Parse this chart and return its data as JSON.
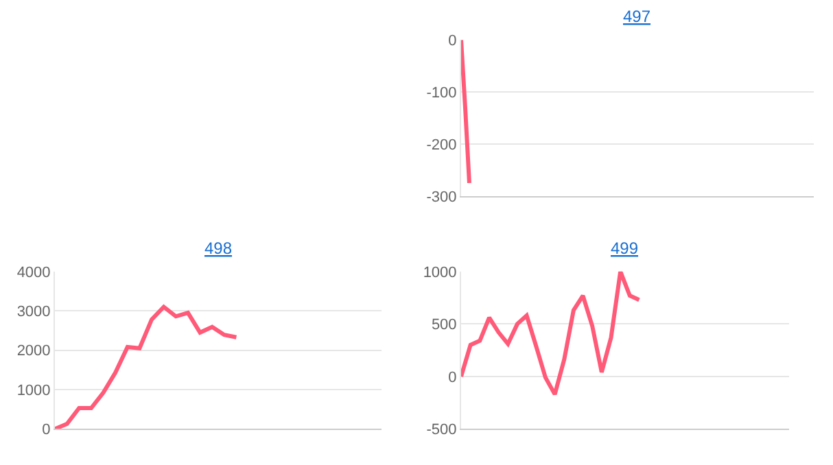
{
  "chart_data": [
    {
      "type": "line",
      "title": "497",
      "categories": [
        null,
        null,
        null,
        null,
        null,
        null,
        null,
        null,
        null,
        null,
        null,
        null,
        null,
        null,
        null,
        null,
        null,
        null,
        null,
        null,
        null,
        null,
        null,
        null,
        null,
        null,
        null,
        null,
        null,
        null,
        null,
        null,
        null,
        null,
        null,
        null,
        null,
        null,
        null,
        null,
        null,
        null,
        null,
        null,
        null,
        null,
        null,
        null,
        null,
        null,
        null,
        null,
        null,
        null,
        null,
        null,
        null,
        null,
        null,
        null,
        null,
        null,
        null,
        null,
        null,
        null,
        null,
        null,
        null,
        null,
        null,
        null,
        null,
        null,
        null,
        null,
        null,
        null,
        null,
        null,
        null,
        null,
        null,
        null,
        null,
        null,
        null
      ],
      "series": [
        {
          "color": "#ff5a78",
          "values": [
            0,
            -130,
            -275,
            null,
            null,
            null,
            null,
            null,
            null,
            null,
            null,
            null,
            null,
            null,
            null,
            null,
            null,
            null,
            null,
            null,
            null,
            null,
            null,
            null,
            null,
            null,
            null,
            null,
            null,
            null,
            null,
            null,
            null,
            null,
            null,
            null,
            null,
            null,
            null,
            null,
            null,
            null,
            null,
            null,
            null,
            null,
            null,
            null,
            null,
            null,
            null,
            null,
            null,
            null,
            null,
            null,
            null,
            null,
            null,
            null,
            null,
            null,
            null,
            null,
            null,
            null,
            null,
            null,
            null,
            null,
            null,
            null,
            null,
            null,
            null,
            null,
            null,
            null,
            null,
            null,
            null,
            null,
            null,
            null,
            null,
            null,
            null
          ]
        }
      ],
      "ylim": [
        -300,
        0
      ],
      "yticks": [
        -300,
        -200,
        -100,
        0
      ],
      "grid": "y",
      "tick_labels": "y",
      "marker": "none"
    },
    {
      "type": "line",
      "title": "498",
      "categories": [
        null,
        null,
        null,
        null,
        null,
        null,
        null,
        null,
        null,
        null,
        null,
        null,
        null,
        null,
        null,
        null,
        null,
        null,
        null,
        null,
        null,
        null,
        null,
        null,
        null,
        null,
        null,
        null
      ],
      "series": [
        {
          "color": "#ff5a78",
          "values": [
            0,
            130,
            530,
            530,
            920,
            1430,
            2080,
            2050,
            2780,
            3100,
            2860,
            2950,
            2450,
            2590,
            2390,
            2330,
            null,
            null,
            null,
            null,
            null,
            null,
            null,
            null,
            null,
            null,
            null,
            null
          ]
        }
      ],
      "ylim": [
        0,
        4000
      ],
      "yticks": [
        0,
        1000,
        2000,
        3000,
        4000
      ],
      "grid": "y",
      "tick_labels": "y",
      "marker": "none"
    },
    {
      "type": "line",
      "title": "499",
      "categories": [
        null,
        null,
        null,
        null,
        null,
        null,
        null,
        null,
        null,
        null,
        null,
        null,
        null,
        null,
        null,
        null,
        null,
        null,
        null,
        null,
        null,
        null,
        null,
        null,
        null,
        null,
        null,
        null,
        null,
        null,
        null,
        null,
        null,
        null,
        null,
        null
      ],
      "series": [
        {
          "color": "#ff5a78",
          "values": [
            0,
            300,
            340,
            560,
            420,
            310,
            500,
            580,
            290,
            -10,
            -170,
            160,
            630,
            770,
            480,
            40,
            370,
            1000,
            770,
            730,
            null,
            null,
            null,
            null,
            null,
            null,
            null,
            null,
            null,
            null,
            null,
            null,
            null,
            null,
            null,
            null
          ]
        }
      ],
      "ylim": [
        -500,
        1000
      ],
      "yticks": [
        -500,
        0,
        500,
        1000
      ],
      "grid": "y",
      "tick_labels": "y",
      "marker": "none"
    }
  ]
}
